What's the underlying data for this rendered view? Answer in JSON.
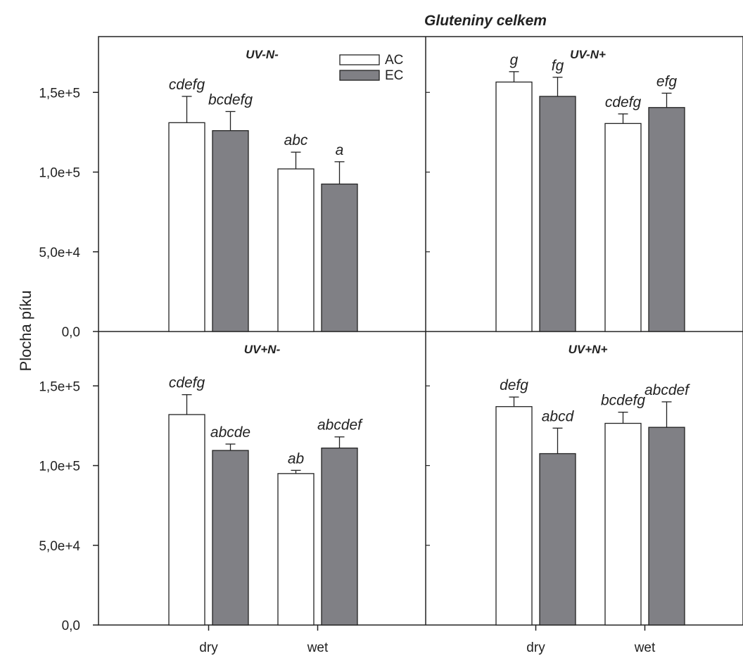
{
  "chart_data": {
    "type": "bar",
    "title": "Gluteniny celkem",
    "ylabel": "Plocha píku",
    "xlabel": "",
    "ylim": [
      0,
      185000
    ],
    "yticks": [
      0,
      50000,
      100000,
      150000
    ],
    "ytick_labels": [
      "0,0",
      "5,0e+4",
      "1,0e+5",
      "1,5e+5"
    ],
    "categories": [
      "dry",
      "wet"
    ],
    "legend": {
      "position": "top-right of first panel",
      "entries": [
        {
          "label": "AC",
          "color": "#ffffff"
        },
        {
          "label": "EC",
          "color": "#808085"
        }
      ]
    },
    "series_colors": {
      "AC": "#ffffff",
      "EC": "#808085"
    },
    "panels": [
      {
        "title": "UV-N-",
        "series": [
          {
            "name": "AC",
            "values": [
              131000,
              102000
            ],
            "errors": [
              16500,
              10500
            ],
            "labels": [
              "cdefg",
              "abc"
            ]
          },
          {
            "name": "EC",
            "values": [
              126000,
              92500
            ],
            "errors": [
              12000,
              14000
            ],
            "labels": [
              "bcdefg",
              "a"
            ]
          }
        ]
      },
      {
        "title": "UV-N+",
        "series": [
          {
            "name": "AC",
            "values": [
              156500,
              130500
            ],
            "errors": [
              6500,
              6000
            ],
            "labels": [
              "g",
              "cdefg"
            ]
          },
          {
            "name": "EC",
            "values": [
              147500,
              140500
            ],
            "errors": [
              12000,
              9000
            ],
            "labels": [
              "fg",
              "efg"
            ]
          }
        ]
      },
      {
        "title": "UV+N-",
        "series": [
          {
            "name": "AC",
            "values": [
              132000,
              95000
            ],
            "errors": [
              12500,
              2000
            ],
            "labels": [
              "cdefg",
              "ab"
            ]
          },
          {
            "name": "EC",
            "values": [
              109500,
              111000
            ],
            "errors": [
              4000,
              7000
            ],
            "labels": [
              "abcde",
              "abcdef"
            ]
          }
        ]
      },
      {
        "title": "UV+N+",
        "series": [
          {
            "name": "AC",
            "values": [
              137000,
              126500
            ],
            "errors": [
              6000,
              7000
            ],
            "labels": [
              "defg",
              "bcdefg"
            ]
          },
          {
            "name": "EC",
            "values": [
              107500,
              124000
            ],
            "errors": [
              16000,
              16000
            ],
            "labels": [
              "abcd",
              "abcdef"
            ]
          }
        ]
      }
    ]
  }
}
